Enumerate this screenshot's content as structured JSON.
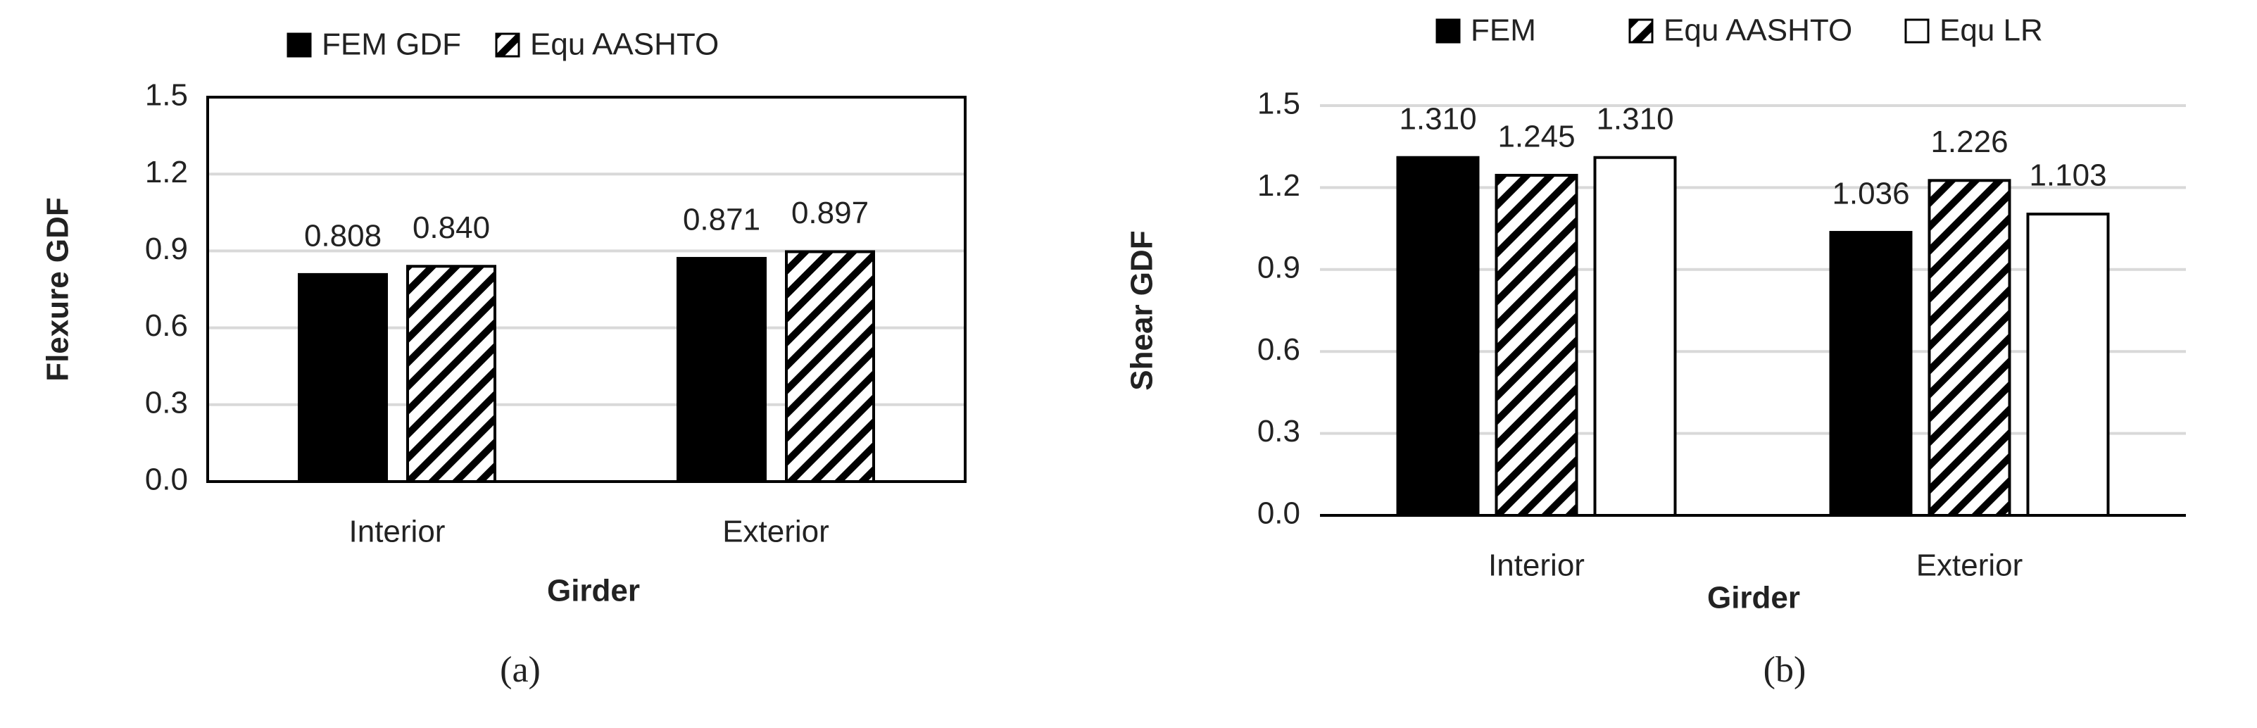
{
  "chart_data": [
    {
      "type": "bar",
      "caption": "(a)",
      "x_label": "Girder",
      "y_label": "Flexure GDF",
      "categories": [
        "Interior",
        "Exterior"
      ],
      "series": [
        {
          "name": "FEM GDF",
          "color": "#000000",
          "values": [
            0.808,
            0.871
          ],
          "value_labels": [
            "0.808",
            "0.871"
          ]
        },
        {
          "name": "Equ  AASHTO",
          "color": "#ffffff",
          "pattern": "diagonal",
          "values": [
            0.84,
            0.897
          ],
          "value_labels": [
            "0.840",
            "0.897"
          ]
        }
      ],
      "ylim": [
        0,
        1.5
      ],
      "yticks": [
        {
          "value": 0,
          "label": "0.0"
        },
        0.3,
        0.6,
        0.9,
        1.2,
        1.5
      ],
      "grid": true,
      "frame": true,
      "legend": "top"
    },
    {
      "type": "bar",
      "caption": "(b)",
      "x_label": "Girder",
      "y_label": "Shear GDF",
      "categories": [
        "Interior",
        "Exterior"
      ],
      "series": [
        {
          "name": "FEM",
          "color": "#000000",
          "values": [
            1.31,
            1.036
          ],
          "value_labels": [
            "1.310",
            "1.036"
          ]
        },
        {
          "name": "Equ AASHTO",
          "color": "#ffffff",
          "pattern": "diagonal",
          "values": [
            1.245,
            1.226
          ],
          "value_labels": [
            "1.245",
            "1.226"
          ]
        },
        {
          "name": "Equ LR",
          "color": "#ffffff",
          "values": [
            1.31,
            1.103
          ],
          "value_labels": [
            "1.310",
            "1.103"
          ]
        }
      ],
      "ylim": [
        0,
        1.5
      ],
      "yticks": [
        {
          "value": 0,
          "label": "0.0"
        },
        0.3,
        0.6,
        0.9,
        1.2,
        1.5
      ],
      "grid": true,
      "frame": false,
      "legend": "top"
    }
  ]
}
